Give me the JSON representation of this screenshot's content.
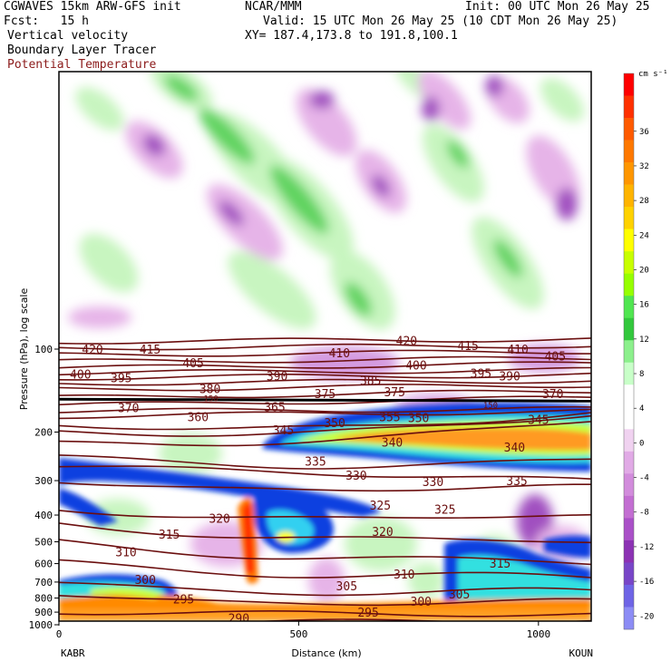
{
  "header": {
    "line1_left": "CGWAVES 15km ARW-GFS init",
    "line1_mid": "NCAR/MMM",
    "line1_right": "Init: 00 UTC Mon 26 May 25",
    "line2_left": "Fcst:   15 h",
    "line2_right": "Valid: 15 UTC Mon 26 May 25 (10 CDT Mon 26 May 25)",
    "line3_left": "Vertical velocity",
    "line3_right": "XY= 187.4,173.8 to 191.8,100.1",
    "line4_left": "Boundary Layer Tracer",
    "line5_left": "Potential Temperature"
  },
  "colors": {
    "theta_contour": "#6b0f0f",
    "tracer_blue": "#1040e0",
    "tracer_dark": "#000080"
  },
  "chart_data": {
    "type": "heatmap",
    "xlabel": "Distance (km)",
    "ylabel": "Pressure (hPa), log scale",
    "x_ticks": [
      0,
      500,
      1000
    ],
    "y_ticks": [
      100,
      200,
      300,
      400,
      500,
      600,
      700,
      800,
      900,
      1000
    ],
    "x_range": [
      0,
      1110
    ],
    "left_endpoint": "KABR",
    "right_endpoint": "KOUN",
    "colorbar": {
      "unit": "cm s⁻¹",
      "labels": [
        36,
        32,
        28,
        24,
        20,
        16,
        12,
        8,
        4,
        0,
        -4,
        -8,
        -12,
        -16,
        -20
      ],
      "colors": [
        "#ff0000",
        "#ff3000",
        "#ff5a00",
        "#ff7800",
        "#ff9600",
        "#ffb400",
        "#ffd200",
        "#ffff00",
        "#c8ff00",
        "#96ff00",
        "#50e650",
        "#32c83c",
        "#8cf08c",
        "#c8ffc8",
        "#ffffff",
        "#ffffff",
        "#f0d2f0",
        "#e1aae6",
        "#d28cdc",
        "#c36ed2",
        "#aa50c8",
        "#8c32b4",
        "#7846c8",
        "#6e64e6",
        "#8c8cf5"
      ]
    },
    "theta_contour_labels": [
      {
        "text": "420",
        "km": 70,
        "p": 100
      },
      {
        "text": "415",
        "km": 190,
        "p": 100
      },
      {
        "text": "405",
        "km": 280,
        "p": 112
      },
      {
        "text": "410",
        "km": 585,
        "p": 103
      },
      {
        "text": "420",
        "km": 725,
        "p": 93
      },
      {
        "text": "415",
        "km": 853,
        "p": 97
      },
      {
        "text": "410",
        "km": 957,
        "p": 100
      },
      {
        "text": "405",
        "km": 1035,
        "p": 106
      },
      {
        "text": "400",
        "km": 45,
        "p": 123
      },
      {
        "text": "395",
        "km": 130,
        "p": 127
      },
      {
        "text": "390",
        "km": 455,
        "p": 125
      },
      {
        "text": "400",
        "km": 745,
        "p": 114
      },
      {
        "text": "395",
        "km": 880,
        "p": 122
      },
      {
        "text": "390",
        "km": 940,
        "p": 125
      },
      {
        "text": "385",
        "km": 650,
        "p": 130
      },
      {
        "text": "380",
        "km": 315,
        "p": 139
      },
      {
        "text": "375",
        "km": 555,
        "p": 145
      },
      {
        "text": "375",
        "km": 700,
        "p": 143
      },
      {
        "text": "370",
        "km": 1030,
        "p": 145
      },
      {
        "text": "370",
        "km": 145,
        "p": 163
      },
      {
        "text": "360",
        "km": 290,
        "p": 176
      },
      {
        "text": "365",
        "km": 450,
        "p": 162
      },
      {
        "text": "355",
        "km": 690,
        "p": 176
      },
      {
        "text": "350",
        "km": 750,
        "p": 177
      },
      {
        "text": "350",
        "km": 575,
        "p": 185
      },
      {
        "text": "345",
        "km": 468,
        "p": 196
      },
      {
        "text": "345",
        "km": 1000,
        "p": 180
      },
      {
        "text": "340",
        "km": 695,
        "p": 217
      },
      {
        "text": "340",
        "km": 950,
        "p": 227
      },
      {
        "text": "335",
        "km": 535,
        "p": 255
      },
      {
        "text": "330",
        "km": 620,
        "p": 287
      },
      {
        "text": "330",
        "km": 780,
        "p": 302
      },
      {
        "text": "335",
        "km": 955,
        "p": 300
      },
      {
        "text": "325",
        "km": 670,
        "p": 368
      },
      {
        "text": "325",
        "km": 805,
        "p": 380
      },
      {
        "text": "320",
        "km": 335,
        "p": 410
      },
      {
        "text": "320",
        "km": 675,
        "p": 458
      },
      {
        "text": "315",
        "km": 230,
        "p": 468
      },
      {
        "text": "315",
        "km": 920,
        "p": 597
      },
      {
        "text": "310",
        "km": 140,
        "p": 544
      },
      {
        "text": "310",
        "km": 720,
        "p": 655
      },
      {
        "text": "305",
        "km": 600,
        "p": 723
      },
      {
        "text": "300",
        "km": 180,
        "p": 685
      },
      {
        "text": "300",
        "km": 755,
        "p": 822
      },
      {
        "text": "305",
        "km": 835,
        "p": 774
      },
      {
        "text": "295",
        "km": 260,
        "p": 806
      },
      {
        "text": "295",
        "km": 645,
        "p": 900
      },
      {
        "text": "290",
        "km": 375,
        "p": 945
      }
    ],
    "special_labels": [
      {
        "text": "150",
        "km": 317,
        "p": 151
      },
      {
        "text": "150",
        "km": 900,
        "p": 160
      }
    ]
  }
}
